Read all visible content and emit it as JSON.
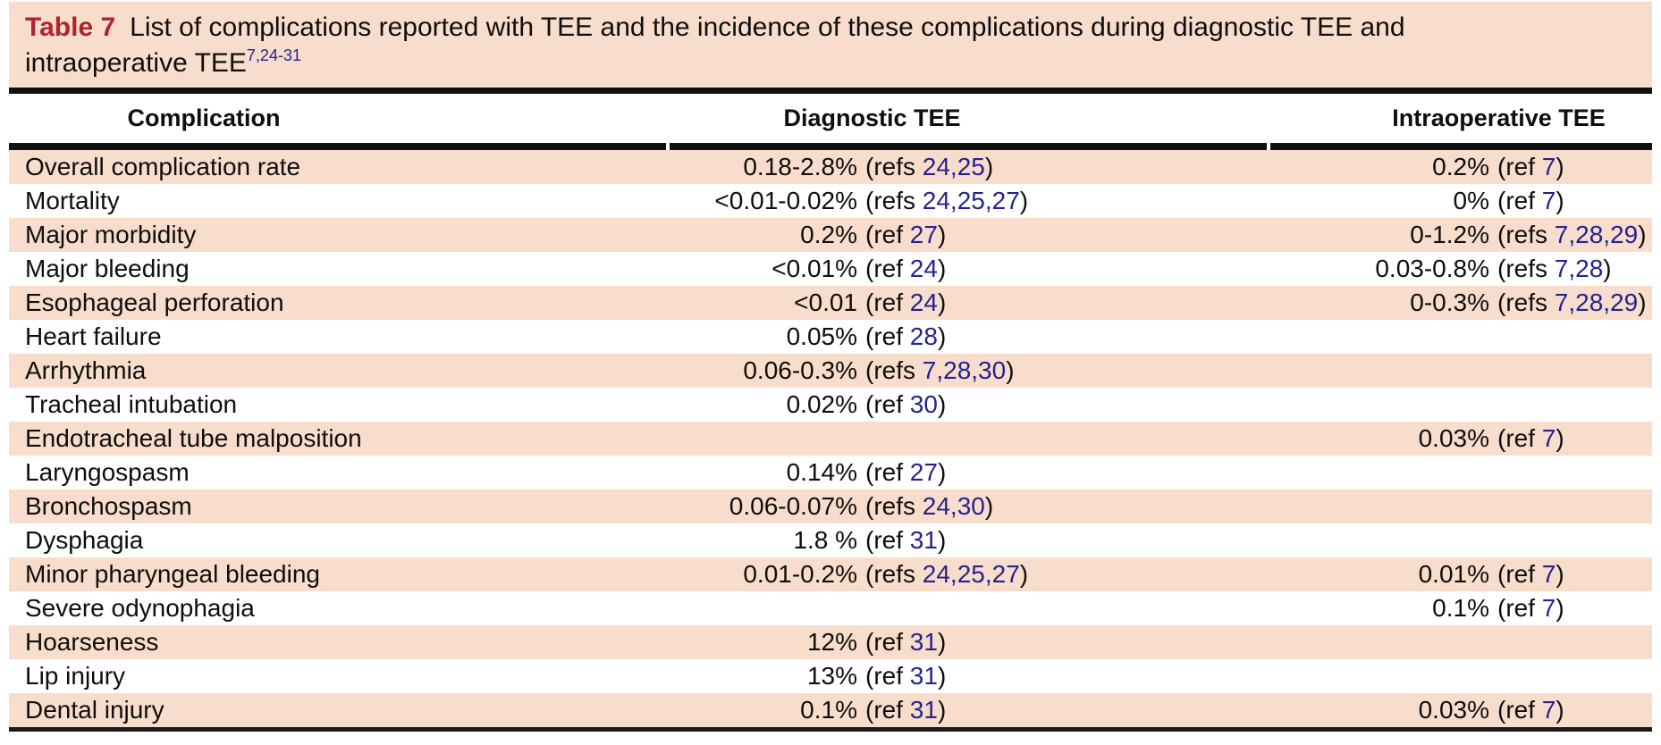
{
  "title": {
    "label": "Table 7",
    "line1": "List of complications reported with TEE and the incidence of these complications during diagnostic TEE and",
    "line2": "intraoperative TEE",
    "citation_superscript": "7,24-31"
  },
  "columns": {
    "complication": "Complication",
    "diagnostic": "Diagnostic TEE",
    "intraoperative": "Intraoperative TEE"
  },
  "colors": {
    "row_highlight_peach": "#f8ddcc",
    "table_label_red": "#b0232f",
    "citation_link_blue": "#24238f",
    "rule_black": "#111111"
  },
  "rows": [
    {
      "complication": "Overall complication rate",
      "diagnostic": {
        "value": "0.18-2.8%",
        "ref_label": "refs",
        "ref_numbers": "24,25"
      },
      "intraoperative": {
        "value": "0.2%",
        "ref_label": "ref",
        "ref_numbers": "7"
      }
    },
    {
      "complication": "Mortality",
      "diagnostic": {
        "value": "<0.01-0.02%",
        "ref_label": "refs",
        "ref_numbers": "24,25,27"
      },
      "intraoperative": {
        "value": "0%",
        "ref_label": "ref",
        "ref_numbers": "7"
      }
    },
    {
      "complication": "Major morbidity",
      "diagnostic": {
        "value": "0.2%",
        "ref_label": "ref",
        "ref_numbers": "27"
      },
      "intraoperative": {
        "value": "0-1.2%",
        "ref_label": "refs",
        "ref_numbers": "7,28,29"
      }
    },
    {
      "complication": "Major bleeding",
      "diagnostic": {
        "value": "<0.01%",
        "ref_label": "ref",
        "ref_numbers": "24"
      },
      "intraoperative": {
        "value": "0.03-0.8%",
        "ref_label": "refs",
        "ref_numbers": "7,28"
      }
    },
    {
      "complication": "Esophageal perforation",
      "diagnostic": {
        "value": "<0.01",
        "ref_label": "ref",
        "ref_numbers": "24"
      },
      "intraoperative": {
        "value": "0-0.3%",
        "ref_label": "refs",
        "ref_numbers": "7,28,29"
      }
    },
    {
      "complication": "Heart failure",
      "diagnostic": {
        "value": "0.05%",
        "ref_label": "ref",
        "ref_numbers": "28"
      },
      "intraoperative": null
    },
    {
      "complication": "Arrhythmia",
      "diagnostic": {
        "value": "0.06-0.3%",
        "ref_label": "refs",
        "ref_numbers": "7,28,30"
      },
      "intraoperative": null
    },
    {
      "complication": "Tracheal intubation",
      "diagnostic": {
        "value": "0.02%",
        "ref_label": "ref",
        "ref_numbers": "30"
      },
      "intraoperative": null
    },
    {
      "complication": "Endotracheal tube malposition",
      "diagnostic": null,
      "intraoperative": {
        "value": "0.03%",
        "ref_label": "ref",
        "ref_numbers": "7"
      }
    },
    {
      "complication": "Laryngospasm",
      "diagnostic": {
        "value": "0.14%",
        "ref_label": "ref",
        "ref_numbers": "27"
      },
      "intraoperative": null
    },
    {
      "complication": "Bronchospasm",
      "diagnostic": {
        "value": "0.06-0.07%",
        "ref_label": "refs",
        "ref_numbers": "24,30"
      },
      "intraoperative": null
    },
    {
      "complication": "Dysphagia",
      "diagnostic": {
        "value": "1.8 %",
        "ref_label": "ref",
        "ref_numbers": "31"
      },
      "intraoperative": null
    },
    {
      "complication": "Minor pharyngeal bleeding",
      "diagnostic": {
        "value": "0.01-0.2%",
        "ref_label": "refs",
        "ref_numbers": "24,25,27"
      },
      "intraoperative": {
        "value": "0.01%",
        "ref_label": "ref",
        "ref_numbers": "7"
      }
    },
    {
      "complication": "Severe odynophagia",
      "diagnostic": null,
      "intraoperative": {
        "value": "0.1%",
        "ref_label": "ref",
        "ref_numbers": "7"
      }
    },
    {
      "complication": "Hoarseness",
      "diagnostic": {
        "value": "12%",
        "ref_label": "ref",
        "ref_numbers": "31"
      },
      "intraoperative": null
    },
    {
      "complication": "Lip injury",
      "diagnostic": {
        "value": "13%",
        "ref_label": "ref",
        "ref_numbers": "31"
      },
      "intraoperative": null
    },
    {
      "complication": "Dental injury",
      "diagnostic": {
        "value": "0.1%",
        "ref_label": "ref",
        "ref_numbers": "31"
      },
      "intraoperative": {
        "value": "0.03%",
        "ref_label": "ref",
        "ref_numbers": "7"
      }
    }
  ]
}
